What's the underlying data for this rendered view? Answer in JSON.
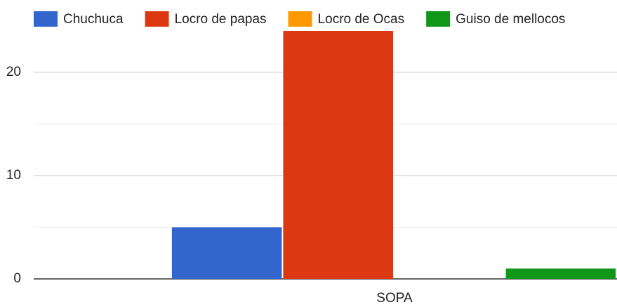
{
  "chart_data": {
    "type": "bar",
    "categories": [
      "SOPA"
    ],
    "series": [
      {
        "name": "Chuchuca",
        "color": "#3366cc",
        "values": [
          5
        ]
      },
      {
        "name": "Locro de papas",
        "color": "#dc3912",
        "values": [
          24
        ]
      },
      {
        "name": "Locro de Ocas",
        "color": "#ff9900",
        "values": [
          0
        ]
      },
      {
        "name": "Guiso de mellocos",
        "color": "#109618",
        "values": [
          1
        ]
      }
    ],
    "ylim": [
      0,
      24
    ],
    "yticks": [
      0,
      10,
      20
    ],
    "minor_yticks": [
      5,
      15
    ],
    "grid": true,
    "legend": "top"
  }
}
